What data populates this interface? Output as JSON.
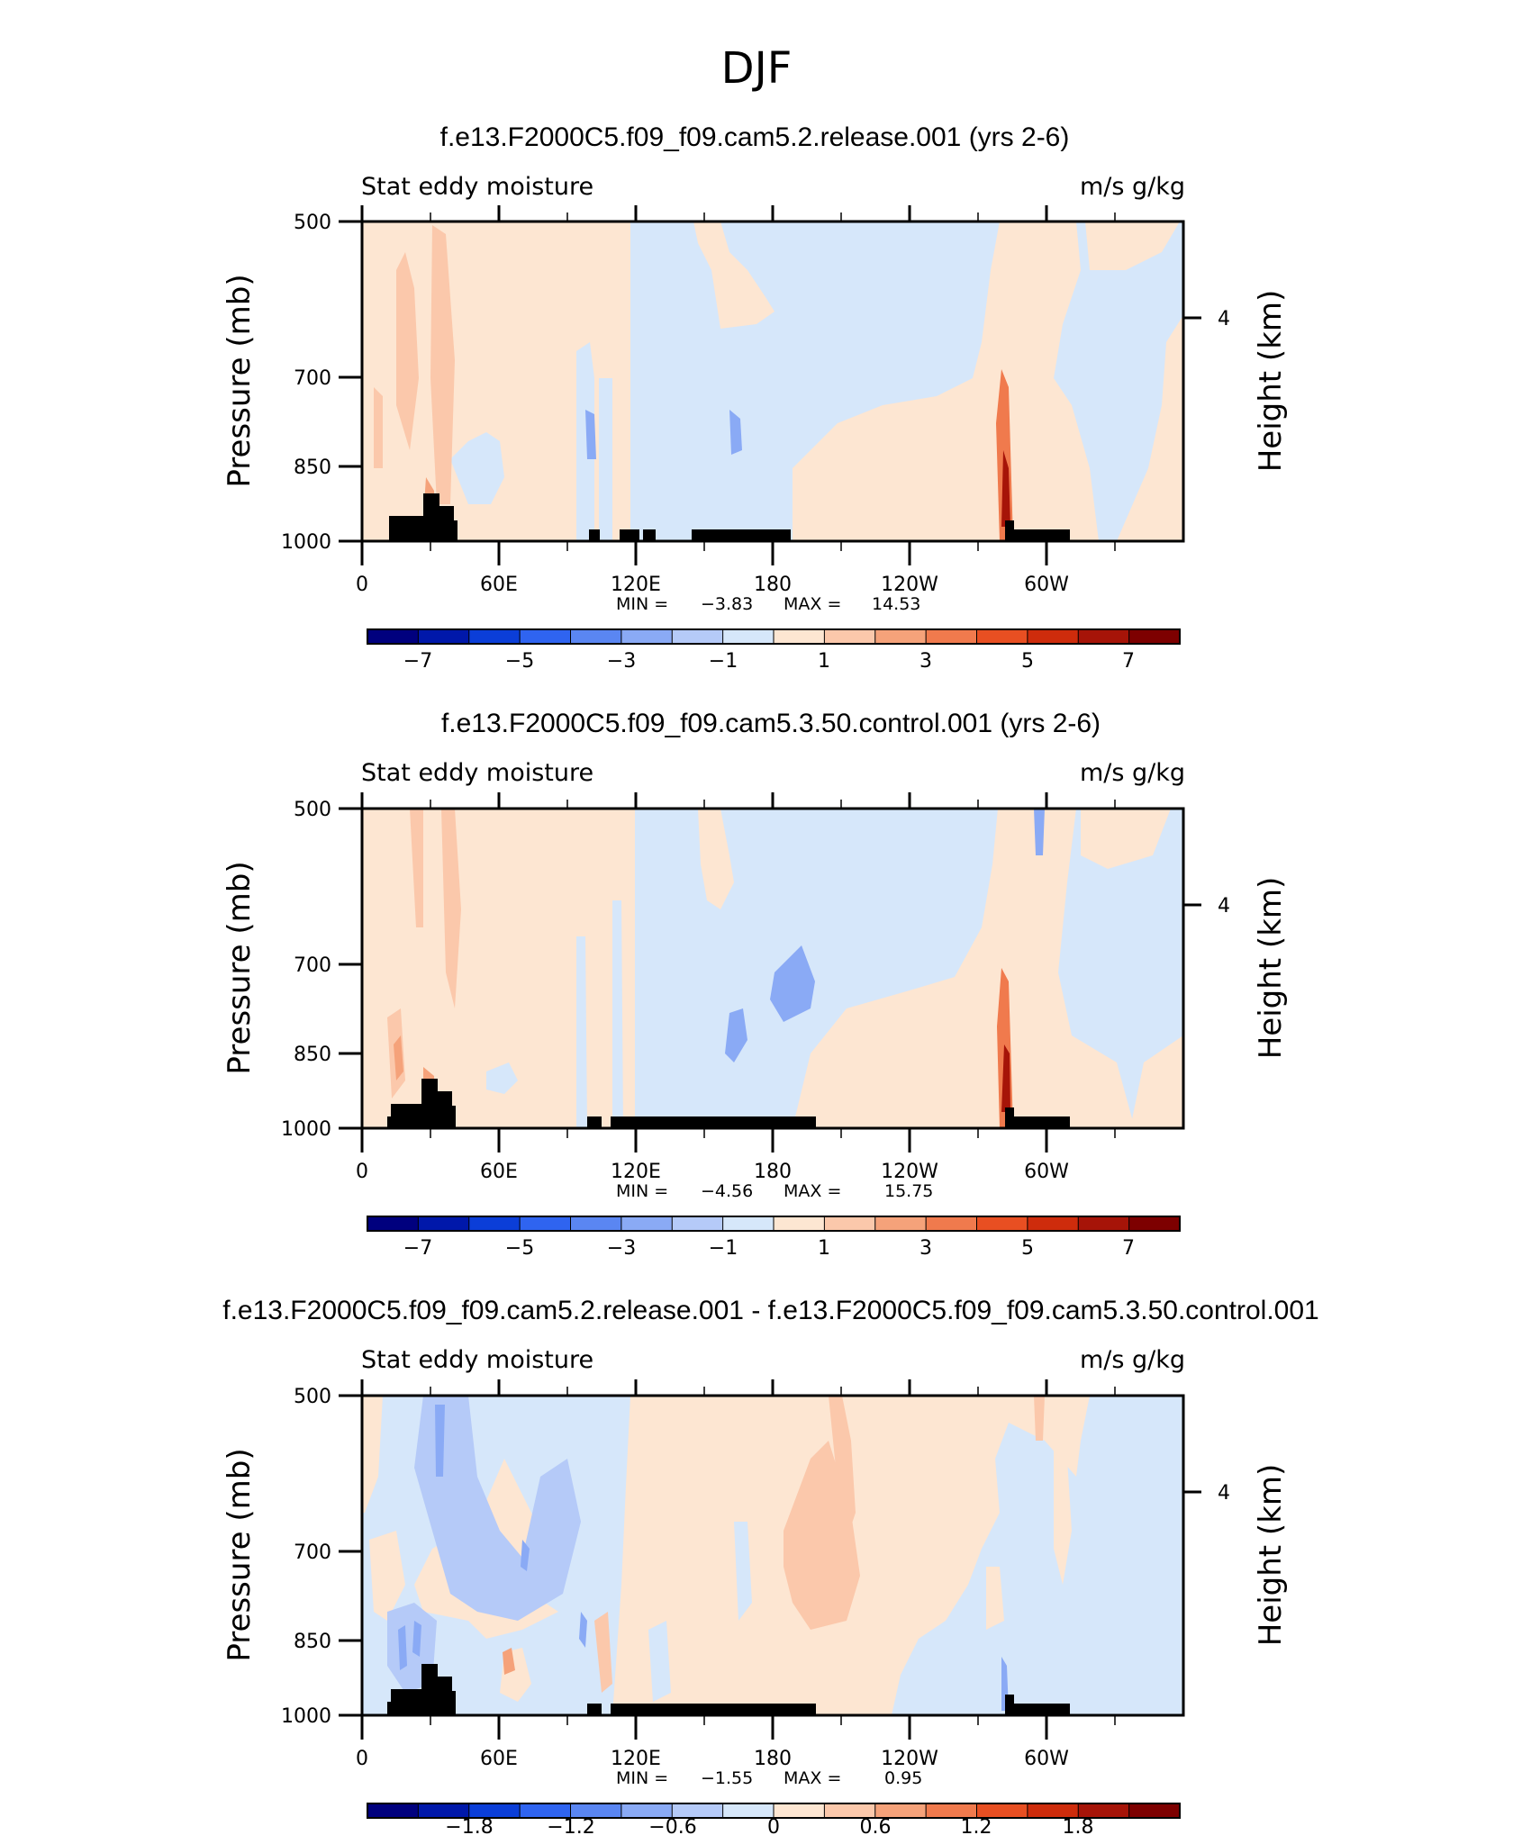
{
  "page_title": "DJF",
  "chart_data": [
    {
      "type": "heatmap",
      "title": "f.e13.F2000C5.f09_f09.cam5.2.release.001 (yrs 2-6)",
      "left_label": "Stat eddy moisture",
      "right_label": "m/s g/kg",
      "ylabel": "Pressure (mb)",
      "ylabel_right": "Height (km)",
      "ylim": [
        1000,
        500
      ],
      "y_ticks": [
        "500",
        "700",
        "850",
        "1000"
      ],
      "y_right_ticks": [
        "4"
      ],
      "x_ticks": [
        "0",
        "60E",
        "120E",
        "180",
        "120W",
        "60W"
      ],
      "stats": {
        "min_label": "MIN =",
        "min_value": "−3.83",
        "max_label": "MAX =",
        "max_value": "14.53"
      },
      "colorbar_labels": [
        "−7",
        "−5",
        "−3",
        "−1",
        "1",
        "3",
        "5",
        "7"
      ]
    },
    {
      "type": "heatmap",
      "title": "f.e13.F2000C5.f09_f09.cam5.3.50.control.001 (yrs 2-6)",
      "left_label": "Stat eddy moisture",
      "right_label": "m/s g/kg",
      "ylabel": "Pressure (mb)",
      "ylabel_right": "Height (km)",
      "ylim": [
        1000,
        500
      ],
      "y_ticks": [
        "500",
        "700",
        "850",
        "1000"
      ],
      "y_right_ticks": [
        "4"
      ],
      "x_ticks": [
        "0",
        "60E",
        "120E",
        "180",
        "120W",
        "60W"
      ],
      "stats": {
        "min_label": "MIN =",
        "min_value": "−4.56",
        "max_label": "MAX =",
        "max_value": "15.75"
      },
      "colorbar_labels": [
        "−7",
        "−5",
        "−3",
        "−1",
        "1",
        "3",
        "5",
        "7"
      ]
    },
    {
      "type": "heatmap",
      "title": "f.e13.F2000C5.f09_f09.cam5.2.release.001 - f.e13.F2000C5.f09_f09.cam5.3.50.control.001",
      "left_label": "Stat eddy moisture",
      "right_label": "m/s g/kg",
      "ylabel": "Pressure (mb)",
      "ylabel_right": "Height (km)",
      "ylim": [
        1000,
        500
      ],
      "y_ticks": [
        "500",
        "700",
        "850",
        "1000"
      ],
      "y_right_ticks": [
        "4"
      ],
      "x_ticks": [
        "0",
        "60E",
        "120E",
        "180",
        "120W",
        "60W"
      ],
      "stats": {
        "min_label": "MIN =",
        "min_value": "−1.55",
        "max_label": "MAX =",
        "max_value": "0.95"
      },
      "colorbar_labels": [
        "−1.8",
        "−1.2",
        "−0.6",
        "0",
        "0.6",
        "1.2",
        "1.8"
      ]
    }
  ],
  "colorbar_colors": [
    "#00007e",
    "#0018aa",
    "#0b3ed8",
    "#2f64f0",
    "#5a86f2",
    "#8aaaf5",
    "#b5caf8",
    "#d6e7fa",
    "#fde6d2",
    "#fbc8ab",
    "#f5a27a",
    "#f07a4d",
    "#e84f22",
    "#ce2c0c",
    "#a61408",
    "#7d0000"
  ]
}
